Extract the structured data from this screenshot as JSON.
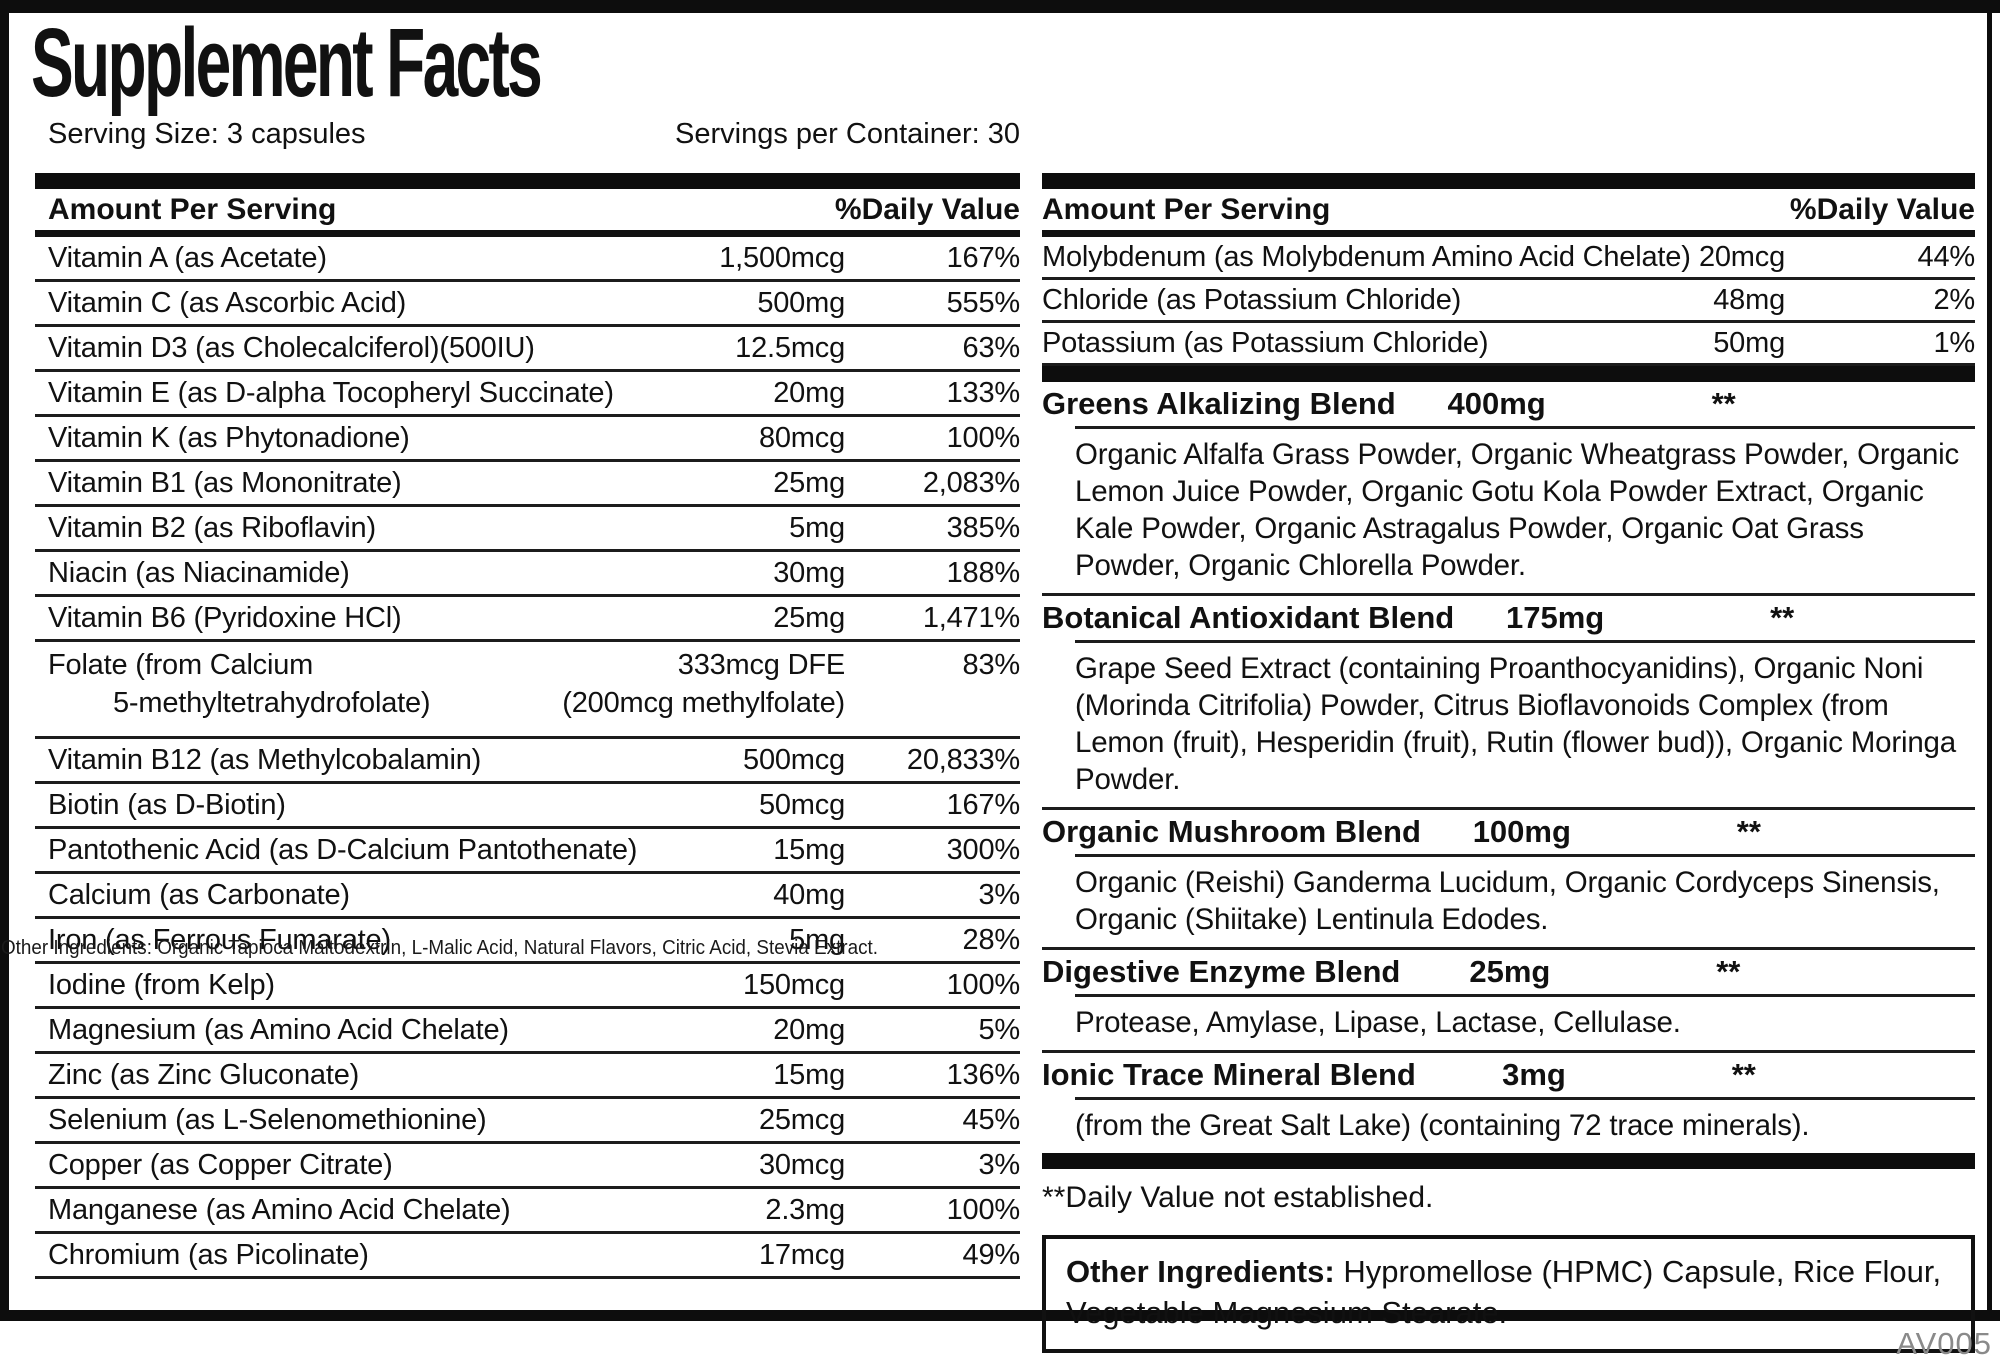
{
  "label": {
    "title": "Supplement Facts",
    "serving_size": "Serving Size: 3 capsules",
    "servings_per_container": "Servings per Container: 30",
    "footnote": "**Daily Value not established.",
    "code": "AV005",
    "overlay_text": "Other Ingredients: Organic Tapioca Maltodextrin, L-Malic Acid, Natural Flavors, Citric Acid, Stevia Extract."
  },
  "table_headers": {
    "amount": "Amount Per Serving",
    "daily_value": "%Daily Value"
  },
  "left_table": {
    "rows": [
      {
        "name": "Vitamin A (as Acetate)",
        "amount": "1,500mcg",
        "dv": "167%"
      },
      {
        "name": "Vitamin C (as Ascorbic Acid)",
        "amount": "500mg",
        "dv": "555%"
      },
      {
        "name": "Vitamin D3 (as Cholecalciferol)(500IU)",
        "amount": "12.5mcg",
        "dv": "63%"
      },
      {
        "name": "Vitamin E (as D-alpha Tocopheryl Succinate)",
        "amount": "20mg",
        "dv": "133%"
      },
      {
        "name": "Vitamin K (as Phytonadione)",
        "amount": "80mcg",
        "dv": "100%"
      },
      {
        "name": "Vitamin B1 (as Mononitrate)",
        "amount": "25mg",
        "dv": "2,083%"
      },
      {
        "name": "Vitamin B2 (as Riboflavin)",
        "amount": "5mg",
        "dv": "385%"
      },
      {
        "name": "Niacin (as Niacinamide)",
        "amount": "30mg",
        "dv": "188%"
      },
      {
        "name": "Vitamin B6 (Pyridoxine HCl)",
        "amount": "25mg",
        "dv": "1,471%"
      },
      {
        "name": "Folate (from Calcium",
        "name2": "5-methyltetrahydrofolate)",
        "amount": "333mcg DFE",
        "amount2": "(200mcg methylfolate)",
        "dv": "83%"
      },
      {
        "name": "Vitamin B12 (as Methylcobalamin)",
        "amount": "500mcg",
        "dv": "20,833%"
      },
      {
        "name": "Biotin (as D-Biotin)",
        "amount": "50mcg",
        "dv": "167%"
      },
      {
        "name": "Pantothenic Acid (as D-Calcium Pantothenate)",
        "amount": "15mg",
        "dv": "300%"
      },
      {
        "name": "Calcium (as Carbonate)",
        "amount": "40mg",
        "dv": "3%"
      },
      {
        "name": "Iron (as Ferrous Fumarate)",
        "amount": "5mg",
        "dv": "28%"
      },
      {
        "name": "Iodine (from Kelp)",
        "amount": "150mcg",
        "dv": "100%"
      },
      {
        "name": "Magnesium (as Amino Acid Chelate)",
        "amount": "20mg",
        "dv": "5%"
      },
      {
        "name": "Zinc (as Zinc Gluconate)",
        "amount": "15mg",
        "dv": "136%"
      },
      {
        "name": "Selenium (as L-Selenomethionine)",
        "amount": "25mcg",
        "dv": "45%"
      },
      {
        "name": "Copper (as Copper Citrate)",
        "amount": "30mcg",
        "dv": "3%"
      },
      {
        "name": "Manganese (as Amino Acid Chelate)",
        "amount": "2.3mg",
        "dv": "100%"
      },
      {
        "name": "Chromium (as Picolinate)",
        "amount": "17mcg",
        "dv": "49%"
      }
    ]
  },
  "right_table": {
    "rows": [
      {
        "name": "Molybdenum (as Molybdenum Amino Acid Chelate)",
        "amount": "20mcg",
        "dv": "44%"
      },
      {
        "name": "Chloride (as Potassium Chloride)",
        "amount": "48mg",
        "dv": "2%"
      },
      {
        "name": "Potassium (as Potassium Chloride)",
        "amount": "50mg",
        "dv": "1%"
      }
    ],
    "blends": [
      {
        "name": "Greens Alkalizing Blend",
        "amount": "400mg",
        "dv": "**",
        "desc": "Organic Alfalfa Grass Powder, Organic Wheatgrass Powder, Organic Lemon Juice Powder, Organic Gotu Kola Powder Extract, Organic Kale Powder, Organic Astragalus Powder, Organic Oat Grass Powder, Organic Chlorella Powder."
      },
      {
        "name": "Botanical Antioxidant Blend",
        "amount": "175mg",
        "dv": "**",
        "desc": "Grape Seed Extract (containing Proanthocyanidins), Organic Noni (Morinda Citrifolia) Powder, Citrus Bioflavonoids Complex (from Lemon (fruit), Hesperidin (fruit), Rutin (flower bud)), Organic Moringa Powder."
      },
      {
        "name": "Organic Mushroom Blend",
        "amount": "100mg",
        "dv": "**",
        "desc": "Organic (Reishi) Ganderma Lucidum, Organic Cordyceps Sinensis, Organic (Shiitake) Lentinula Edodes."
      },
      {
        "name": "Digestive Enzyme Blend",
        "amount": "25mg",
        "dv": "**",
        "desc": "Protease, Amylase, Lipase, Lactase, Cellulase."
      },
      {
        "name": "Ionic Trace Mineral Blend",
        "amount": "3mg",
        "dv": "**",
        "desc": "(from the Great Salt Lake) (containing 72 trace minerals)."
      }
    ]
  },
  "other_ingredients": {
    "label": "Other Ingredients:",
    "text": " Hypromellose (HPMC) Capsule, Rice Flour, Vegetable Magnesium Stearate."
  },
  "colors": {
    "ink": "#111111",
    "line": "#1c1c1c",
    "code_gray": "#8a8a8a"
  }
}
